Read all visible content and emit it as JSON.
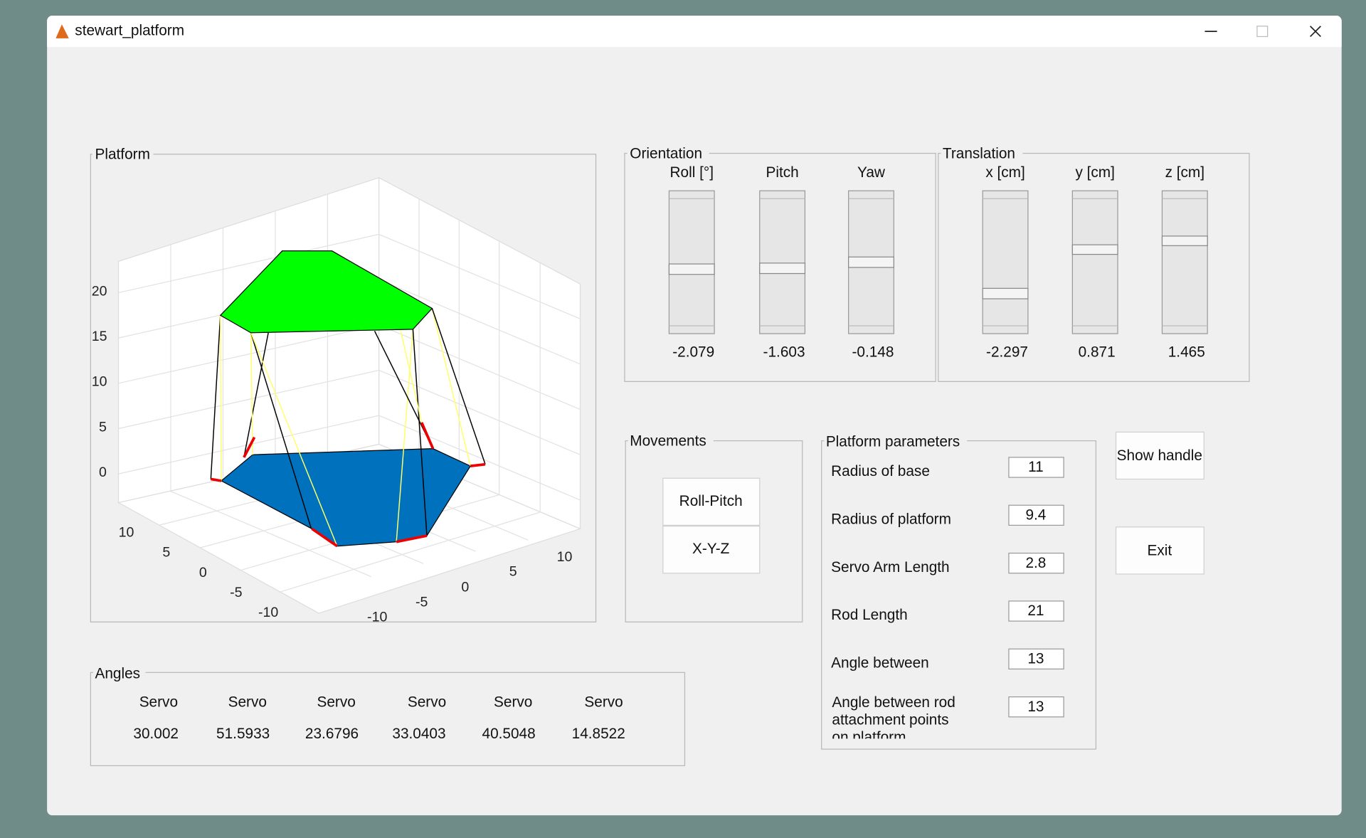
{
  "window": {
    "title": "stewart_platform"
  },
  "platform": {
    "title": "Platform",
    "z_ticks": [
      "20",
      "15",
      "10",
      "5",
      "0"
    ],
    "y_ticks": [
      "10",
      "5",
      "0",
      "-5",
      "-10"
    ],
    "x_ticks": [
      "10",
      "5",
      "0",
      "-5",
      "-10"
    ]
  },
  "orientation": {
    "title": "Orientation",
    "sliders": [
      {
        "label": "Roll [°]",
        "value": "-2.079"
      },
      {
        "label": "Pitch",
        "value": "-1.603"
      },
      {
        "label": "Yaw",
        "value": "-0.148"
      }
    ]
  },
  "translation": {
    "title": "Translation",
    "sliders": [
      {
        "label": "x [cm]",
        "value": "-2.297"
      },
      {
        "label": "y [cm]",
        "value": "0.871"
      },
      {
        "label": "z [cm]",
        "value": "1.465"
      }
    ]
  },
  "movements": {
    "title": "Movements",
    "buttons": [
      "Roll-Pitch",
      "X-Y-Z"
    ]
  },
  "parameters": {
    "title": "Platform parameters",
    "fields": [
      {
        "label": "Radius of base",
        "value": "11"
      },
      {
        "label": "Radius of platform",
        "value": "9.4"
      },
      {
        "label": "Servo Arm Length",
        "value": "2.8"
      },
      {
        "label": "Rod Length",
        "value": "21"
      },
      {
        "label": "Angle between",
        "value": "13"
      },
      {
        "label": "Angle between rod attachment points on platform",
        "value": "13"
      }
    ]
  },
  "buttons": [
    "Show handle",
    "Exit"
  ],
  "angles": {
    "title": "Angles",
    "servos": [
      {
        "label": "Servo",
        "value": "30.002"
      },
      {
        "label": "Servo",
        "value": "51.5933"
      },
      {
        "label": "Servo",
        "value": "23.6796"
      },
      {
        "label": "Servo",
        "value": "33.0403"
      },
      {
        "label": "Servo",
        "value": "40.5048"
      },
      {
        "label": "Servo",
        "value": "14.8522"
      }
    ]
  }
}
